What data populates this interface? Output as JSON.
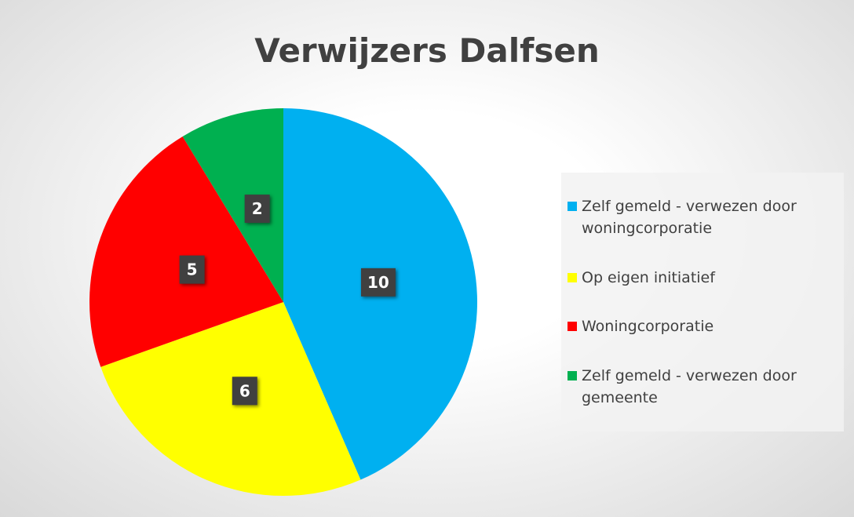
{
  "chart_data": {
    "type": "pie",
    "title": "Verwijzers Dalfsen",
    "categories": [
      "Zelf gemeld - verwezen door woningcorporatie",
      "Op eigen initiatief",
      "Woningcorporatie",
      "Zelf gemeld - verwezen door gemeente"
    ],
    "values": [
      10,
      6,
      5,
      2
    ],
    "colors": [
      "#00b0f0",
      "#ffff00",
      "#ff0000",
      "#00b050"
    ],
    "legend": "right"
  }
}
